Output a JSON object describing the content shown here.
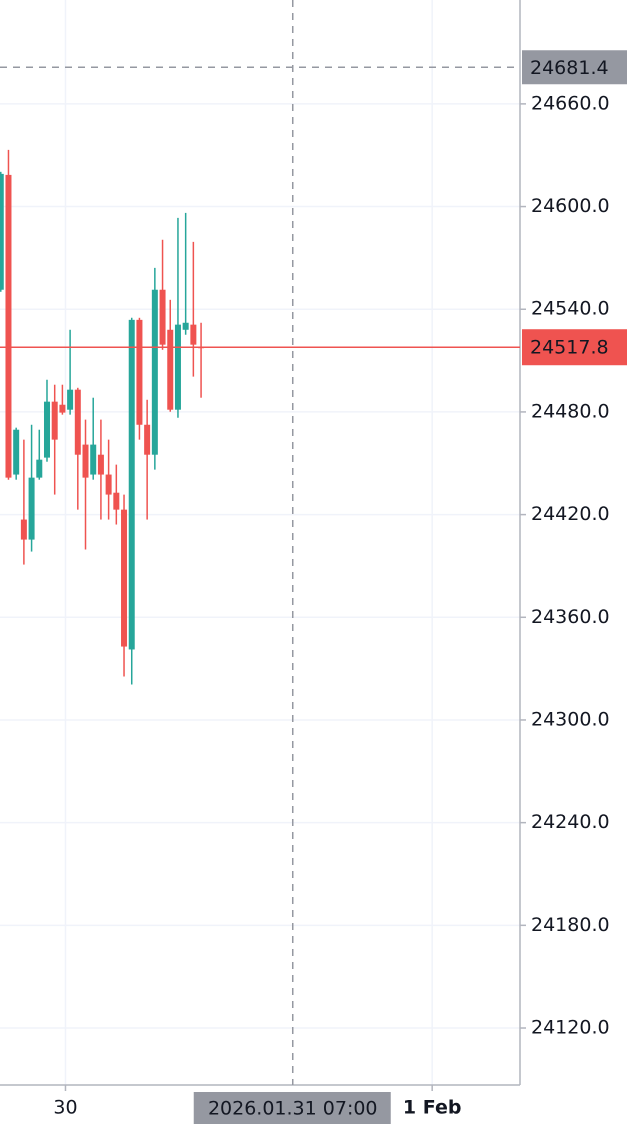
{
  "chart_data": {
    "type": "candlestick",
    "x": [
      0,
      1,
      2,
      3,
      4,
      5,
      6,
      7,
      8,
      9,
      10,
      11,
      12,
      13,
      14,
      15,
      16,
      17,
      18,
      19,
      20,
      21,
      22,
      23,
      24,
      25,
      26
    ],
    "open": [
      24551.4,
      24618.5,
      24443.4,
      24417.1,
      24405.4,
      24441.6,
      24453.3,
      24486.0,
      24484.2,
      24481.3,
      24493.0,
      24460.9,
      24443.4,
      24455.0,
      24443.4,
      24432.8,
      24422.9,
      24341.2,
      24533.8,
      24472.5,
      24455.0,
      24551.4,
      24528.0,
      24481.3,
      24528.0,
      24531.0,
      24518.1
    ],
    "high": [
      24620.3,
      24633.1,
      24470.8,
      24463.8,
      24472.5,
      24469.6,
      24498.8,
      24495.9,
      24495.9,
      24528.0,
      24494.1,
      24475.5,
      24488.3,
      24475.5,
      24463.8,
      24449.2,
      24431.7,
      24535.0,
      24535.0,
      24487.1,
      24564.2,
      24580.6,
      24545.5,
      24593.4,
      24596.3,
      24579.4,
      24532.1
    ],
    "low": [
      24550.2,
      24440.4,
      24440.4,
      24390.8,
      24398.4,
      24440.4,
      24450.9,
      24431.7,
      24478.4,
      24478.4,
      24422.9,
      24399.6,
      24440.4,
      24417.1,
      24417.1,
      24414.2,
      24325.4,
      24320.7,
      24463.8,
      24417.1,
      24446.3,
      24516.3,
      24480.1,
      24476.6,
      24525.1,
      24500.6,
      24488.3
    ],
    "close": [
      24619.1,
      24441.6,
      24469.6,
      24405.4,
      24441.6,
      24452.1,
      24486.0,
      24463.8,
      24479.6,
      24493.0,
      24455.0,
      24441.6,
      24460.9,
      24443.4,
      24431.7,
      24422.9,
      24342.9,
      24533.8,
      24472.5,
      24455.0,
      24551.4,
      24519.3,
      24481.3,
      24531.0,
      24532.1,
      24519.3,
      24517.8
    ],
    "up_color": "#26a69a",
    "down_color": "#ef5350",
    "xlim": [
      -0.1,
      67.4
    ],
    "xticks": [
      {
        "value": 8.4,
        "label": "30"
      },
      {
        "value": 56,
        "label": "1 Feb"
      }
    ],
    "ylim": [
      24086.7,
      24720.7
    ],
    "yticks": [
      {
        "value": 24120,
        "label": "24120.0"
      },
      {
        "value": 24180,
        "label": "24180.0"
      },
      {
        "value": 24240,
        "label": "24240.0"
      },
      {
        "value": 24300,
        "label": "24300.0"
      },
      {
        "value": 24360,
        "label": "24360.0"
      },
      {
        "value": 24420,
        "label": "24420.0"
      },
      {
        "value": 24480,
        "label": "24480.0"
      },
      {
        "value": 24540,
        "label": "24540.0"
      },
      {
        "value": 24600,
        "label": "24600.0"
      },
      {
        "value": 24660,
        "label": "24660.0"
      }
    ],
    "grid": true,
    "last_price": 24517.8,
    "crosshair": {
      "price": 24681.4,
      "x": 37.9,
      "time_label": "2026.01.31 07:00"
    }
  }
}
